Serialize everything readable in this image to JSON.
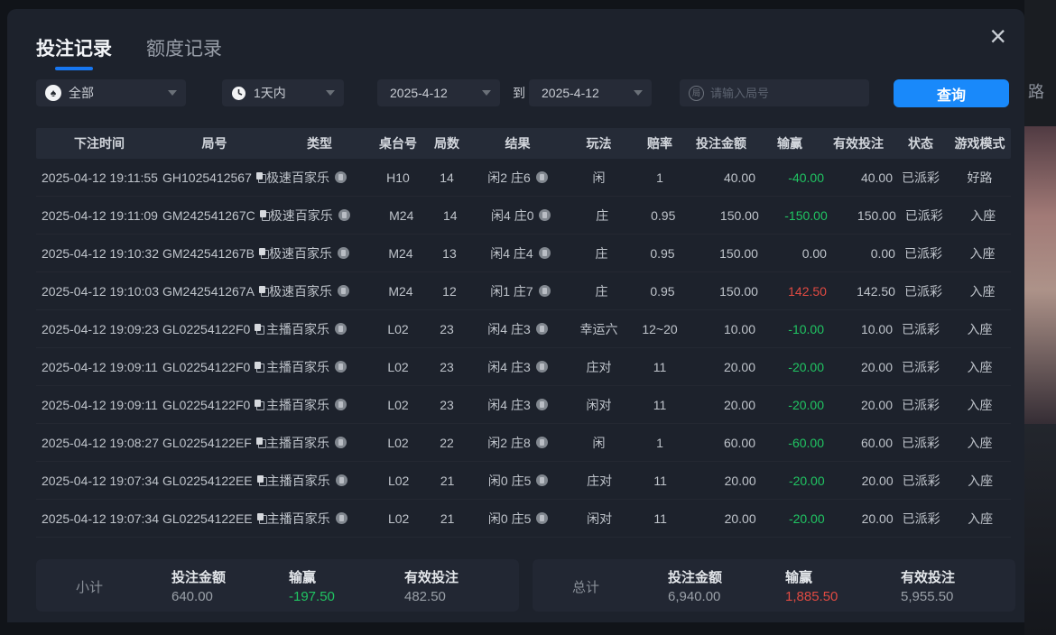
{
  "colors": {
    "accent_blue": "#1989fa",
    "tab_underline": "#1777f2",
    "win_green": "#20c462",
    "loss_red": "#e04a42"
  },
  "tabs": [
    {
      "label": "投注记录",
      "active": true
    },
    {
      "label": "额度记录",
      "active": false
    }
  ],
  "close_icon": "×",
  "filters": {
    "type_dropdown_value": "全部",
    "time_dropdown_value": "1天内",
    "date_from": "2025-4-12",
    "to_label": "到",
    "date_to": "2025-4-12",
    "round_icon_text": "局",
    "round_placeholder": "请输入局号",
    "query_button": "查询"
  },
  "table": {
    "columns": [
      "下注时间",
      "局号",
      "类型",
      "桌台号",
      "局数",
      "结果",
      "玩法",
      "赔率",
      "投注金额",
      "输赢",
      "有效投注",
      "状态",
      "游戏模式"
    ],
    "rows": [
      {
        "time": "2025-04-12 19:11:55",
        "round": "GH1025412567",
        "type": "极速百家乐",
        "table_no": "H10",
        "rounds": "14",
        "result": "闲2 庄6",
        "play": "闲",
        "odds": "1",
        "bet": "40.00",
        "winloss": "-40.00",
        "winloss_color": "green",
        "valid": "40.00",
        "status": "已派彩",
        "mode": "好路"
      },
      {
        "time": "2025-04-12 19:11:09",
        "round": "GM242541267C",
        "type": "极速百家乐",
        "table_no": "M24",
        "rounds": "14",
        "result": "闲4 庄0",
        "play": "庄",
        "odds": "0.95",
        "bet": "150.00",
        "winloss": "-150.00",
        "winloss_color": "green",
        "valid": "150.00",
        "status": "已派彩",
        "mode": "入座"
      },
      {
        "time": "2025-04-12 19:10:32",
        "round": "GM242541267B",
        "type": "极速百家乐",
        "table_no": "M24",
        "rounds": "13",
        "result": "闲4 庄4",
        "play": "庄",
        "odds": "0.95",
        "bet": "150.00",
        "winloss": "0.00",
        "winloss_color": "neutral",
        "valid": "0.00",
        "status": "已派彩",
        "mode": "入座"
      },
      {
        "time": "2025-04-12 19:10:03",
        "round": "GM242541267A",
        "type": "极速百家乐",
        "table_no": "M24",
        "rounds": "12",
        "result": "闲1 庄7",
        "play": "庄",
        "odds": "0.95",
        "bet": "150.00",
        "winloss": "142.50",
        "winloss_color": "red",
        "valid": "142.50",
        "status": "已派彩",
        "mode": "入座"
      },
      {
        "time": "2025-04-12 19:09:23",
        "round": "GL02254122F0",
        "type": "主播百家乐",
        "table_no": "L02",
        "rounds": "23",
        "result": "闲4 庄3",
        "play": "幸运六",
        "odds": "12~20",
        "bet": "10.00",
        "winloss": "-10.00",
        "winloss_color": "green",
        "valid": "10.00",
        "status": "已派彩",
        "mode": "入座"
      },
      {
        "time": "2025-04-12 19:09:11",
        "round": "GL02254122F0",
        "type": "主播百家乐",
        "table_no": "L02",
        "rounds": "23",
        "result": "闲4 庄3",
        "play": "庄对",
        "odds": "11",
        "bet": "20.00",
        "winloss": "-20.00",
        "winloss_color": "green",
        "valid": "20.00",
        "status": "已派彩",
        "mode": "入座"
      },
      {
        "time": "2025-04-12 19:09:11",
        "round": "GL02254122F0",
        "type": "主播百家乐",
        "table_no": "L02",
        "rounds": "23",
        "result": "闲4 庄3",
        "play": "闲对",
        "odds": "11",
        "bet": "20.00",
        "winloss": "-20.00",
        "winloss_color": "green",
        "valid": "20.00",
        "status": "已派彩",
        "mode": "入座"
      },
      {
        "time": "2025-04-12 19:08:27",
        "round": "GL02254122EF",
        "type": "主播百家乐",
        "table_no": "L02",
        "rounds": "22",
        "result": "闲2 庄8",
        "play": "闲",
        "odds": "1",
        "bet": "60.00",
        "winloss": "-60.00",
        "winloss_color": "green",
        "valid": "60.00",
        "status": "已派彩",
        "mode": "入座"
      },
      {
        "time": "2025-04-12 19:07:34",
        "round": "GL02254122EE",
        "type": "主播百家乐",
        "table_no": "L02",
        "rounds": "21",
        "result": "闲0 庄5",
        "play": "庄对",
        "odds": "11",
        "bet": "20.00",
        "winloss": "-20.00",
        "winloss_color": "green",
        "valid": "20.00",
        "status": "已派彩",
        "mode": "入座"
      },
      {
        "time": "2025-04-12 19:07:34",
        "round": "GL02254122EE",
        "type": "主播百家乐",
        "table_no": "L02",
        "rounds": "21",
        "result": "闲0 庄5",
        "play": "闲对",
        "odds": "11",
        "bet": "20.00",
        "winloss": "-20.00",
        "winloss_color": "green",
        "valid": "20.00",
        "status": "已派彩",
        "mode": "入座"
      }
    ]
  },
  "summary": {
    "labels": {
      "bet_amount": "投注金额",
      "winloss": "输赢",
      "valid_bet": "有效投注"
    },
    "subtotal": {
      "label": "小计",
      "bet_amount": "640.00",
      "winloss": "-197.50",
      "winloss_color": "green",
      "valid_bet": "482.50"
    },
    "total": {
      "label": "总计",
      "bet_amount": "6,940.00",
      "winloss": "1,885.50",
      "winloss_color": "red",
      "valid_bet": "5,955.50"
    }
  },
  "background": {
    "fragment_text": "路"
  }
}
